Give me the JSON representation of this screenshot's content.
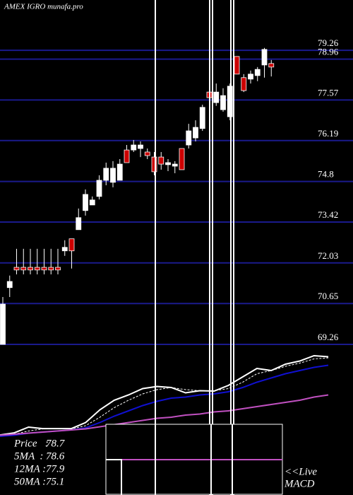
{
  "chart_data": [
    {
      "type": "candlestick",
      "title": "AMEX  IGRO munafa.pro",
      "open": [
        69.26,
        71.19,
        71.88,
        71.88,
        71.88,
        71.88,
        71.88,
        71.88,
        71.88,
        72.44,
        72.85,
        73.16,
        73.81,
        74.0,
        74.29,
        74.84,
        74.77,
        74.84,
        75.87,
        75.87,
        75.92,
        75.8,
        75.63,
        75.63,
        75.37,
        75.32,
        75.92,
        76.04,
        76.28,
        76.6,
        77.84,
        77.48,
        77.24,
        77.0,
        79.05,
        78.33,
        78.28,
        78.4,
        78.76,
        78.81
      ],
      "high": [
        70.87,
        71.6,
        72.51,
        72.51,
        72.51,
        72.51,
        72.51,
        72.51,
        72.51,
        72.8,
        72.85,
        73.88,
        74.53,
        74.29,
        75.01,
        75.44,
        75.49,
        75.56,
        76.04,
        76.21,
        76.16,
        75.92,
        75.8,
        75.8,
        75.56,
        75.49,
        75.92,
        76.76,
        76.88,
        77.41,
        77.97,
        78.13,
        77.97,
        78.13,
        79.05,
        78.45,
        78.57,
        78.69,
        79.34,
        78.93
      ],
      "low": [
        69.26,
        70.87,
        71.64,
        71.64,
        71.64,
        71.64,
        71.64,
        71.64,
        71.64,
        72.27,
        71.84,
        73.16,
        73.64,
        74.0,
        74.19,
        74.67,
        74.6,
        74.84,
        75.44,
        75.8,
        75.63,
        75.56,
        75.01,
        75.2,
        75.15,
        75.08,
        75.2,
        75.92,
        76.16,
        76.52,
        77.6,
        77.37,
        77.17,
        76.88,
        78.45,
        77.84,
        78.13,
        78.21,
        78.33,
        78.37
      ],
      "close": [
        70.63,
        71.4,
        71.79,
        71.79,
        71.79,
        71.79,
        71.79,
        71.79,
        71.79,
        72.56,
        72.44,
        73.57,
        74.36,
        74.17,
        74.84,
        75.25,
        75.25,
        75.39,
        75.44,
        76.04,
        76.04,
        75.68,
        75.13,
        75.39,
        75.44,
        75.39,
        75.2,
        76.52,
        76.64,
        77.32,
        77.65,
        77.84,
        77.72,
        78.04,
        78.45,
        77.89,
        78.45,
        78.61,
        79.29,
        78.69
      ],
      "up_color": "#ffffff",
      "down_color": "#cc0000",
      "grid_color": "#1a1a8c",
      "ylim": [
        69.26,
        80.97
      ],
      "yticks": [
        79.26,
        78.96,
        77.57,
        76.19,
        74.8,
        73.42,
        72.03,
        70.65,
        69.26
      ],
      "grid": true
    },
    {
      "type": "line",
      "series": [
        {
          "name": "Price",
          "color": "#ffffff",
          "dash": false,
          "value": 78.7,
          "label": "Price   :",
          "values": [
            71.33,
            71.53,
            72.07,
            71.93,
            71.93,
            71.93,
            72.5,
            73.7,
            74.6,
            75.1,
            75.7,
            75.9,
            75.8,
            75.3,
            75.5,
            75.47,
            76.0,
            76.8,
            77.6,
            77.4,
            78.0,
            78.3,
            78.8,
            78.7
          ]
        },
        {
          "name": "5MA",
          "color": "#ffffff",
          "dash": true,
          "value": 78.6,
          "label": "5MA  :",
          "values": [
            71.3,
            71.4,
            71.7,
            71.9,
            71.9,
            71.9,
            72.2,
            73.0,
            73.9,
            74.6,
            75.2,
            75.6,
            75.8,
            75.6,
            75.5,
            75.5,
            75.7,
            76.3,
            77.1,
            77.4,
            77.8,
            78.1,
            78.5,
            78.6
          ]
        },
        {
          "name": "12MA",
          "color": "#1010d0",
          "dash": false,
          "value": 77.9,
          "label": "12MA :",
          "values": [
            71.2,
            71.3,
            71.5,
            71.6,
            71.7,
            71.8,
            72.0,
            72.5,
            73.1,
            73.6,
            74.1,
            74.5,
            74.8,
            74.9,
            75.1,
            75.2,
            75.4,
            75.8,
            76.3,
            76.7,
            77.1,
            77.4,
            77.7,
            77.9
          ]
        },
        {
          "name": "50MA",
          "color": "#c050c0",
          "dash": false,
          "value": 75.1,
          "label": "50MA :",
          "values": [
            71.3,
            71.4,
            71.5,
            71.6,
            71.7,
            71.8,
            71.9,
            72.1,
            72.3,
            72.5,
            72.7,
            72.9,
            73.0,
            73.2,
            73.3,
            73.5,
            73.6,
            73.8,
            74.0,
            74.2,
            74.4,
            74.6,
            74.9,
            75.1
          ]
        }
      ],
      "ylim": [
        71,
        79.87
      ],
      "macd_label": [
        "<<Live",
        "MACD"
      ]
    }
  ]
}
